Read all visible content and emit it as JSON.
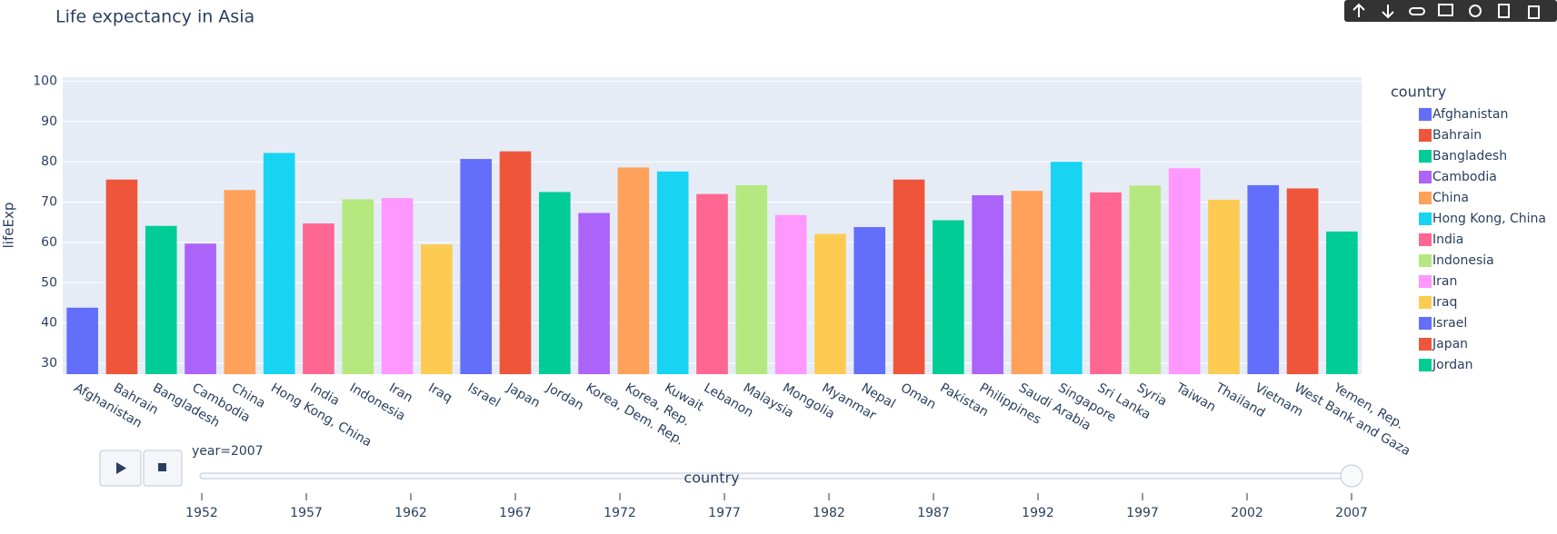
{
  "chart_data": {
    "type": "bar",
    "title": "Life expectancy in Asia",
    "x_label": "country",
    "y_label": "lifeExp",
    "legend_title": "country",
    "categories": [
      "Afghanistan",
      "Bahrain",
      "Bangladesh",
      "Cambodia",
      "China",
      "Hong Kong, China",
      "India",
      "Indonesia",
      "Iran",
      "Iraq",
      "Israel",
      "Japan",
      "Jordan",
      "Korea, Dem. Rep.",
      "Korea, Rep.",
      "Kuwait",
      "Lebanon",
      "Malaysia",
      "Mongolia",
      "Myanmar",
      "Nepal",
      "Oman",
      "Pakistan",
      "Philippines",
      "Saudi Arabia",
      "Singapore",
      "Sri Lanka",
      "Syria",
      "Taiwan",
      "Thailand",
      "Vietnam",
      "West Bank and Gaza",
      "Yemen, Rep."
    ],
    "values": [
      43.8,
      75.6,
      64.1,
      59.7,
      73.0,
      82.2,
      64.7,
      70.7,
      71.0,
      59.5,
      80.7,
      82.6,
      72.5,
      67.3,
      78.6,
      77.6,
      72.0,
      74.2,
      66.8,
      62.1,
      63.8,
      75.6,
      65.5,
      71.7,
      72.8,
      80.0,
      72.4,
      74.1,
      78.4,
      70.6,
      74.2,
      73.4,
      62.7
    ],
    "colors": [
      "#636efa",
      "#ef553b",
      "#00cc96",
      "#ab63fa",
      "#ffa15a",
      "#19d3f3",
      "#ff6692",
      "#b6e880",
      "#ff97ff",
      "#fecb52",
      "#636efa",
      "#ef553b",
      "#00cc96",
      "#ab63fa",
      "#ffa15a",
      "#19d3f3",
      "#ff6692",
      "#b6e880",
      "#ff97ff",
      "#fecb52",
      "#636efa",
      "#ef553b",
      "#00cc96",
      "#ab63fa",
      "#ffa15a",
      "#19d3f3",
      "#ff6692",
      "#b6e880",
      "#ff97ff",
      "#fecb52",
      "#636efa",
      "#ef553b",
      "#00cc96"
    ],
    "ylim": [
      27.3,
      101
    ],
    "yticks": [
      30,
      40,
      50,
      60,
      70,
      80,
      90,
      100
    ],
    "grid": true,
    "slider": {
      "current_label": "year=2007",
      "steps": [
        1952,
        1957,
        1962,
        1967,
        1972,
        1977,
        1982,
        1987,
        1992,
        1997,
        2002,
        2007
      ],
      "active": 2007
    }
  }
}
